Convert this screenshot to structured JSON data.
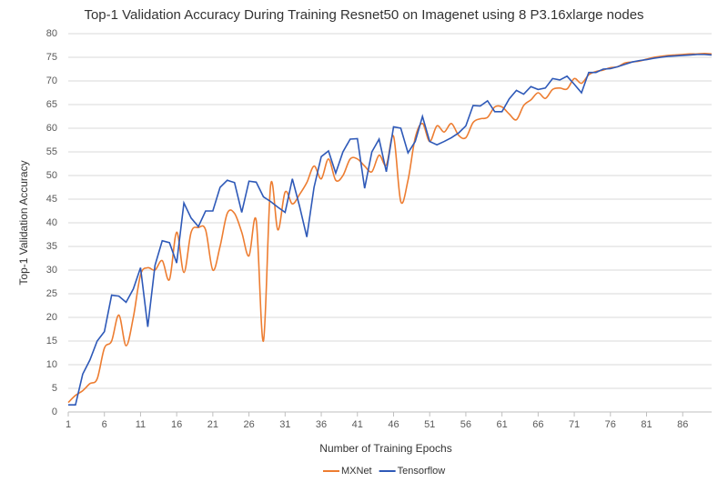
{
  "chart_data": {
    "type": "line",
    "title": "Top-1 Validation Accuracy During Training Resnet50 on Imagenet using 8 P3.16xlarge nodes",
    "x_label": "Number of Training Epochs",
    "y_label": "Top-1 Validation Accuracy",
    "x": [
      1,
      2,
      3,
      4,
      5,
      6,
      7,
      8,
      9,
      10,
      11,
      12,
      13,
      14,
      15,
      16,
      17,
      18,
      19,
      20,
      21,
      22,
      23,
      24,
      25,
      26,
      27,
      28,
      29,
      30,
      31,
      32,
      33,
      34,
      35,
      36,
      37,
      38,
      39,
      40,
      41,
      42,
      43,
      44,
      45,
      46,
      47,
      48,
      49,
      50,
      51,
      52,
      53,
      54,
      55,
      56,
      57,
      58,
      59,
      60,
      61,
      62,
      63,
      64,
      65,
      66,
      67,
      68,
      69,
      70,
      71,
      72,
      73,
      74,
      75,
      76,
      77,
      78,
      79,
      80,
      81,
      82,
      83,
      84,
      85,
      86,
      87,
      88,
      89,
      90
    ],
    "xlim": [
      1,
      90
    ],
    "xticks": [
      1,
      6,
      11,
      16,
      21,
      26,
      31,
      36,
      41,
      46,
      51,
      56,
      61,
      66,
      71,
      76,
      81,
      86
    ],
    "ylim": [
      0,
      80
    ],
    "yticks": [
      0,
      5,
      10,
      15,
      20,
      25,
      30,
      35,
      40,
      45,
      50,
      55,
      60,
      65,
      70,
      75,
      80
    ],
    "grid": true,
    "legend": "bottom",
    "series": [
      {
        "name": "MXNet",
        "color": "#ed7d31",
        "smooth": true,
        "values": [
          2,
          3.5,
          4.5,
          6,
          7,
          13.5,
          15,
          20.5,
          14,
          20,
          29,
          30.5,
          30,
          32,
          28,
          38,
          29.5,
          38,
          39,
          38.5,
          30,
          35,
          42,
          42,
          38,
          33,
          40.5,
          15,
          48,
          38.5,
          46.5,
          44,
          46,
          48.5,
          52,
          49.3,
          53.5,
          49,
          50,
          53.5,
          53.5,
          52,
          50.8,
          54.3,
          52.2,
          58.3,
          44.5,
          49,
          58,
          61,
          57.2,
          60.5,
          59.2,
          61,
          58.5,
          58,
          61.2,
          62,
          62.3,
          64.5,
          64.5,
          63,
          61.8,
          64.8,
          66,
          67.5,
          66.3,
          68.2,
          68.5,
          68.3,
          70.5,
          69.5,
          71.3,
          72,
          72.3,
          72.8,
          73,
          73.8,
          74,
          74.2,
          74.6,
          75,
          75.2,
          75.4,
          75.5,
          75.6,
          75.7,
          75.7,
          75.8,
          75.7
        ]
      },
      {
        "name": "Tensorflow",
        "color": "#2e59b8",
        "smooth": false,
        "values": [
          1.5,
          1.5,
          8,
          11,
          15,
          17,
          24.7,
          24.5,
          23.2,
          26,
          30.5,
          18,
          31,
          36.2,
          35.8,
          31.5,
          44.2,
          41,
          39.2,
          42.5,
          42.5,
          47.5,
          49,
          48.5,
          42.2,
          48.8,
          48.6,
          45.5,
          44.5,
          43.3,
          42.2,
          49.3,
          43.5,
          37,
          47.5,
          54,
          55.2,
          50.5,
          55,
          57.7,
          57.8,
          47.3,
          55,
          57.7,
          50.8,
          60.3,
          60,
          54.8,
          57.2,
          62.5,
          57.2,
          56.5,
          57.2,
          58,
          59,
          60.5,
          64.8,
          64.7,
          65.8,
          63.5,
          63.5,
          66.2,
          68,
          67.2,
          68.8,
          68.2,
          68.5,
          70.5,
          70.2,
          71,
          69.3,
          67.5,
          71.8,
          71.8,
          72.5,
          72.6,
          73,
          73.5,
          74,
          74.3,
          74.5,
          74.8,
          75,
          75.2,
          75.3,
          75.4,
          75.5,
          75.6,
          75.6,
          75.5
        ]
      }
    ]
  }
}
